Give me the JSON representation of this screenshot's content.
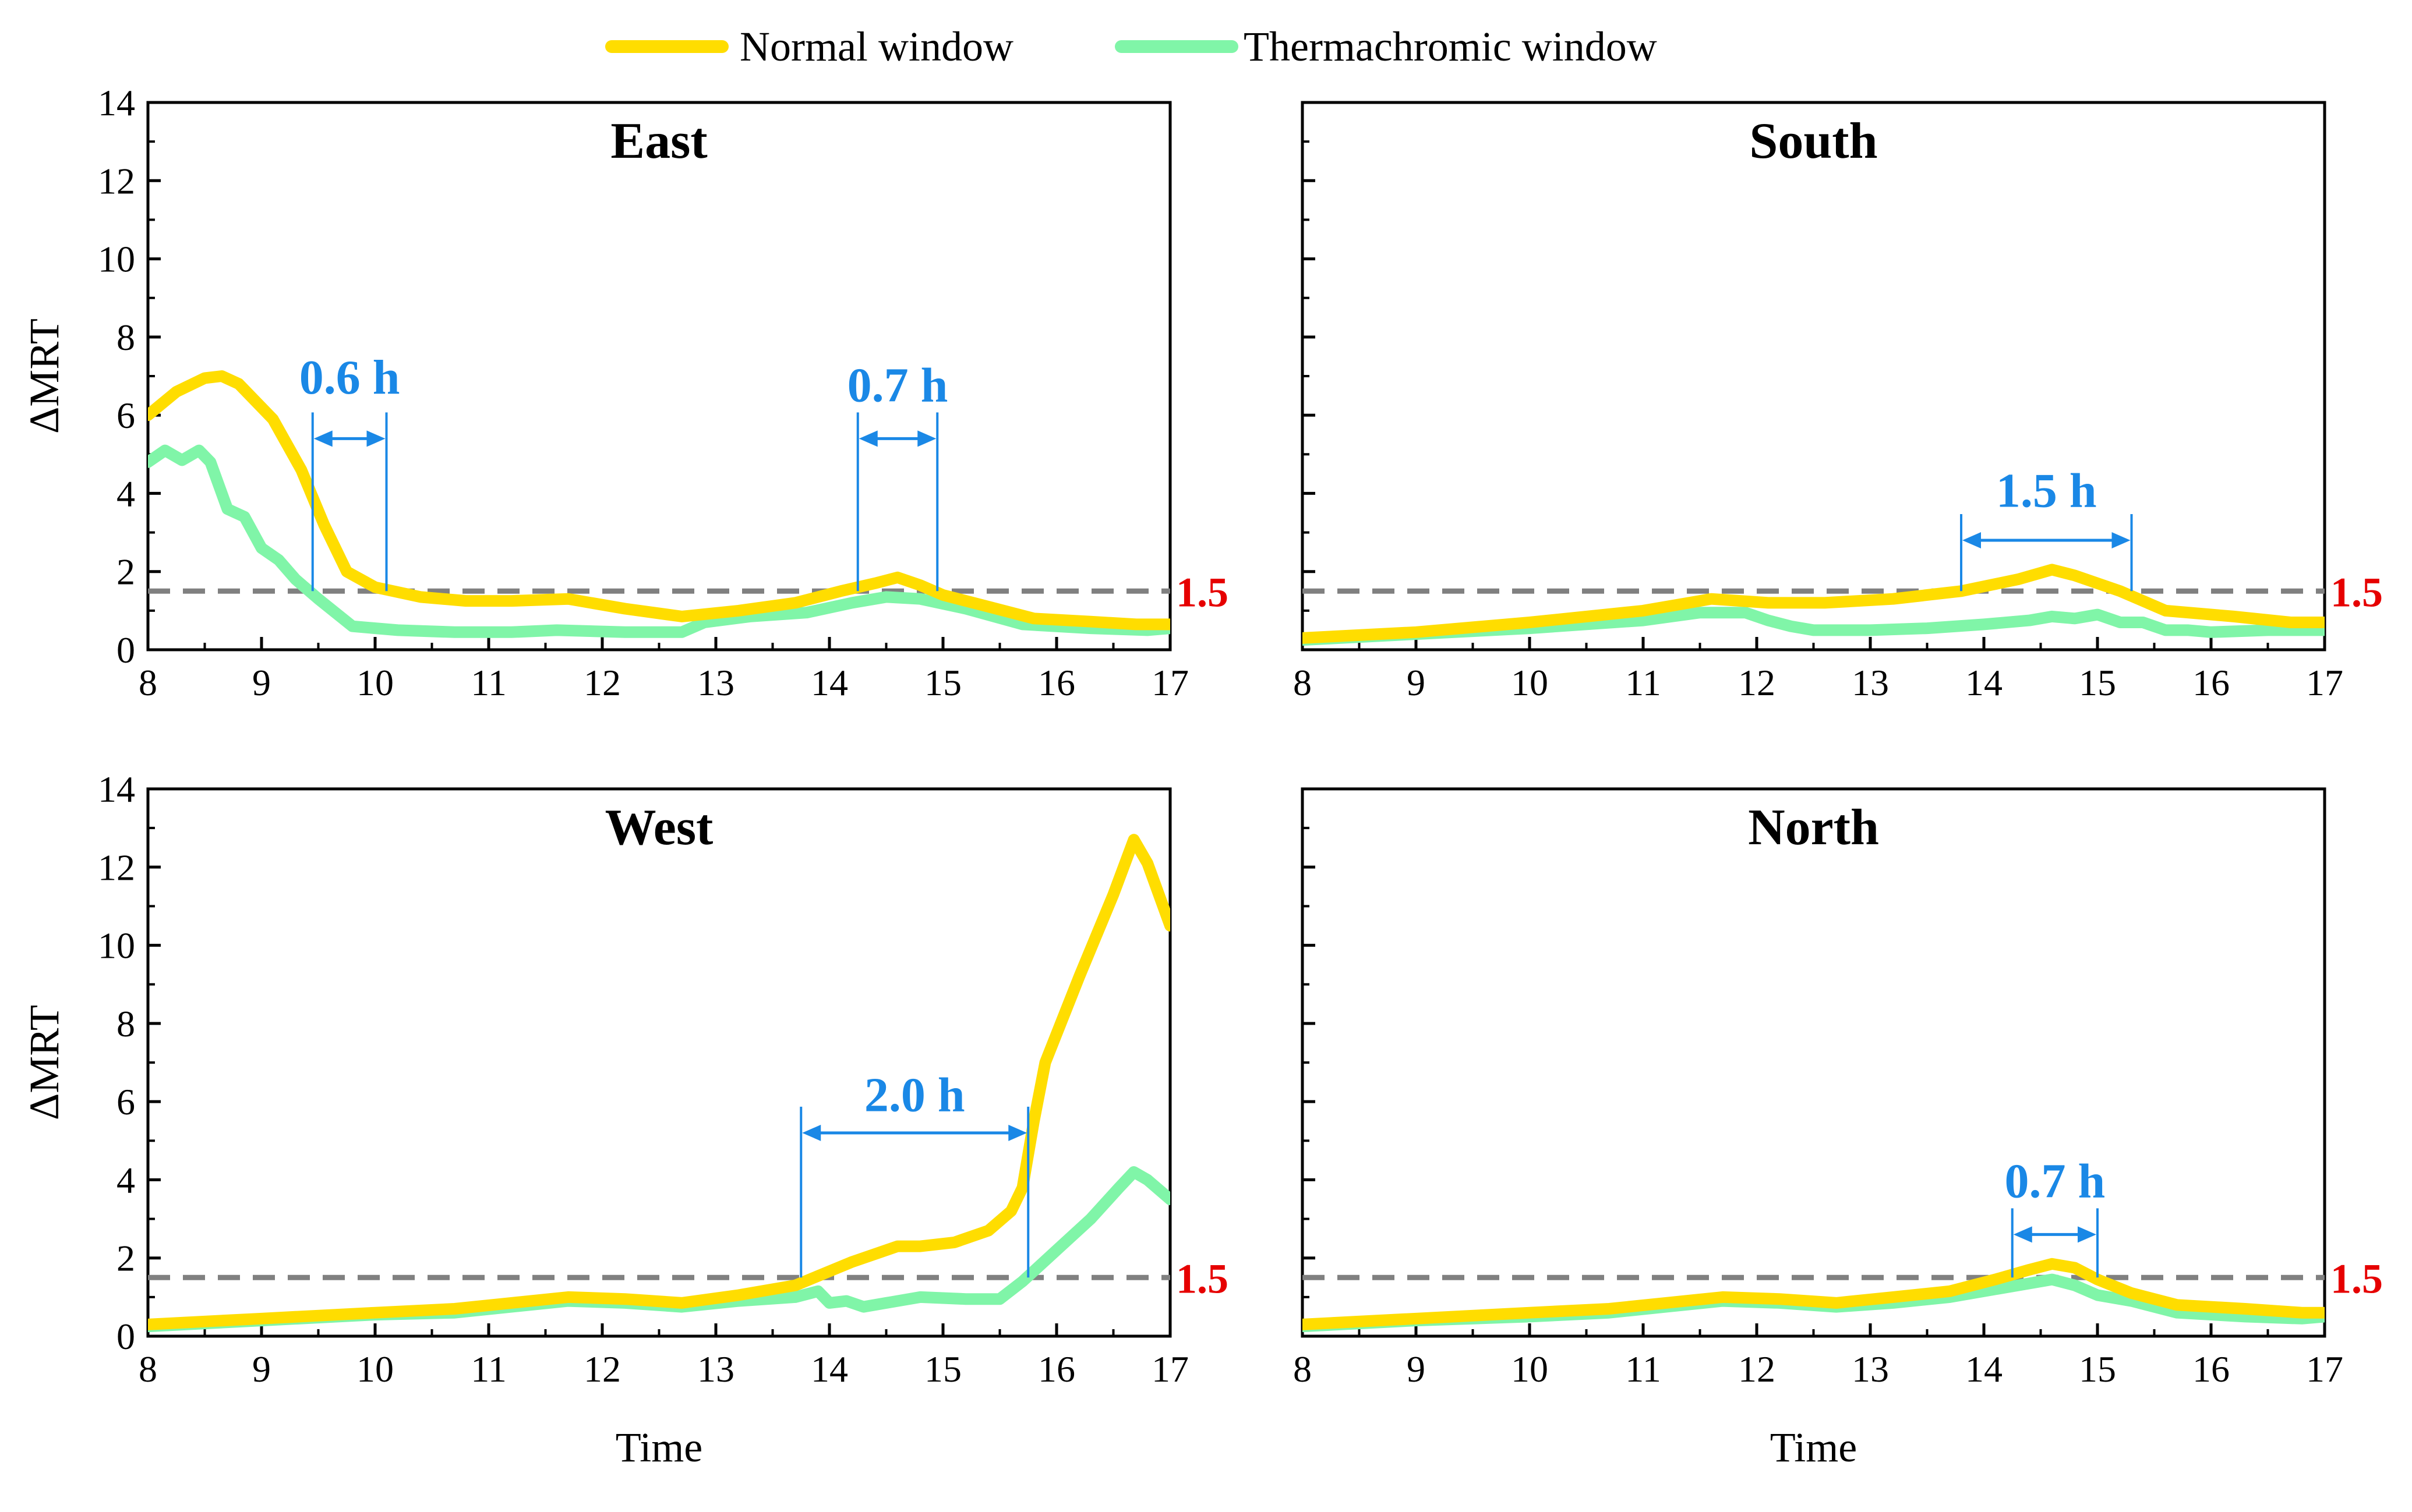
{
  "legend": [
    {
      "name": "Normal window",
      "color": "#FFDD00"
    },
    {
      "name": "Thermachromic window",
      "color": "#80F5A8"
    }
  ],
  "colors": {
    "annotation": "#1A88E6",
    "threshold_line": "#808080",
    "threshold_label": "#E60000",
    "axis": "#000000"
  },
  "x_ticks": [
    "8",
    "9",
    "10",
    "11",
    "12",
    "13",
    "14",
    "15",
    "16",
    "17"
  ],
  "y_ticks": [
    "0",
    "2",
    "4",
    "6",
    "8",
    "10",
    "12",
    "14"
  ],
  "chart_data": [
    {
      "type": "line",
      "title": "East",
      "xlabel": "",
      "ylabel": "ΔMRT",
      "xlim": [
        8,
        17
      ],
      "ylim": [
        0,
        14
      ],
      "threshold": {
        "value": 1.5,
        "label": "1.5"
      },
      "series": [
        {
          "name": "Normal window",
          "x": [
            8,
            8.25,
            8.5,
            8.65,
            8.8,
            9.1,
            9.35,
            9.55,
            9.75,
            10.0,
            10.4,
            10.8,
            11.2,
            11.7,
            12.2,
            12.7,
            13.2,
            13.7,
            14.1,
            14.4,
            14.6,
            14.8,
            15.0,
            15.4,
            15.8,
            16.3,
            16.7,
            17
          ],
          "y": [
            6.0,
            6.6,
            6.95,
            7.0,
            6.8,
            5.9,
            4.6,
            3.2,
            2.0,
            1.6,
            1.35,
            1.25,
            1.25,
            1.3,
            1.05,
            0.85,
            1.0,
            1.2,
            1.5,
            1.7,
            1.85,
            1.65,
            1.4,
            1.1,
            0.8,
            0.72,
            0.65,
            0.65
          ]
        },
        {
          "name": "Thermachromic window",
          "x": [
            8,
            8.15,
            8.3,
            8.45,
            8.55,
            8.7,
            8.85,
            9.0,
            9.15,
            9.3,
            9.5,
            9.8,
            10.2,
            10.7,
            11.2,
            11.6,
            12.2,
            12.7,
            12.9,
            13.3,
            13.8,
            14.2,
            14.5,
            14.8,
            15.2,
            15.7,
            16.3,
            16.8,
            17
          ],
          "y": [
            4.8,
            5.1,
            4.85,
            5.1,
            4.8,
            3.6,
            3.4,
            2.6,
            2.3,
            1.8,
            1.3,
            0.6,
            0.5,
            0.45,
            0.45,
            0.5,
            0.45,
            0.45,
            0.7,
            0.85,
            0.95,
            1.2,
            1.35,
            1.3,
            1.05,
            0.65,
            0.55,
            0.5,
            0.55
          ]
        }
      ],
      "annotations": [
        {
          "label": "0.6 h",
          "x_start": 9.45,
          "x_end": 10.1,
          "arrow_y": 5.4,
          "label_y": 7.0
        },
        {
          "label": "0.7 h",
          "x_start": 14.25,
          "x_end": 14.95,
          "arrow_y": 5.4,
          "label_y": 6.8
        }
      ]
    },
    {
      "type": "line",
      "title": "South",
      "xlabel": "",
      "ylabel": "",
      "xlim": [
        8,
        17
      ],
      "ylim": [
        0,
        14
      ],
      "threshold": {
        "value": 1.5,
        "label": "1.5"
      },
      "series": [
        {
          "name": "Normal window",
          "x": [
            8,
            9,
            10,
            11,
            11.6,
            12.1,
            12.6,
            13.2,
            13.8,
            14.3,
            14.6,
            14.8,
            15.2,
            15.6,
            16.2,
            16.7,
            17
          ],
          "y": [
            0.3,
            0.45,
            0.7,
            1.0,
            1.3,
            1.2,
            1.2,
            1.3,
            1.5,
            1.8,
            2.05,
            1.9,
            1.5,
            1.0,
            0.85,
            0.7,
            0.7
          ]
        },
        {
          "name": "Thermachromic window",
          "x": [
            8,
            9,
            10,
            11,
            11.5,
            11.9,
            12.1,
            12.3,
            12.5,
            13.0,
            13.5,
            14.0,
            14.4,
            14.6,
            14.8,
            15.0,
            15.2,
            15.4,
            15.6,
            15.8,
            16.0,
            16.5,
            17
          ],
          "y": [
            0.25,
            0.4,
            0.55,
            0.75,
            0.95,
            0.95,
            0.75,
            0.6,
            0.5,
            0.5,
            0.55,
            0.65,
            0.75,
            0.85,
            0.8,
            0.9,
            0.7,
            0.7,
            0.5,
            0.5,
            0.45,
            0.5,
            0.5
          ]
        }
      ],
      "annotations": [
        {
          "label": "1.5 h",
          "x_start": 13.8,
          "x_end": 15.3,
          "arrow_y": 2.8,
          "label_y": 4.1
        }
      ]
    },
    {
      "type": "line",
      "title": "West",
      "xlabel": "Time",
      "ylabel": "ΔMRT",
      "xlim": [
        8,
        17
      ],
      "ylim": [
        0,
        14
      ],
      "threshold": {
        "value": 1.5,
        "label": "1.5"
      },
      "series": [
        {
          "name": "Normal window",
          "x": [
            8,
            9,
            10,
            10.7,
            11.2,
            11.7,
            12.2,
            12.7,
            13.2,
            13.7,
            14.2,
            14.6,
            14.8,
            15.1,
            15.4,
            15.6,
            15.7,
            15.8,
            15.9,
            16.2,
            16.5,
            16.68,
            16.8,
            17
          ],
          "y": [
            0.3,
            0.45,
            0.6,
            0.7,
            0.85,
            1.0,
            0.95,
            0.85,
            1.05,
            1.3,
            1.9,
            2.3,
            2.3,
            2.4,
            2.7,
            3.2,
            3.8,
            5.5,
            7.0,
            9.2,
            11.3,
            12.7,
            12.1,
            10.5
          ]
        },
        {
          "name": "Thermachromic window",
          "x": [
            8,
            9,
            10,
            10.7,
            11.2,
            11.7,
            12.2,
            12.7,
            13.2,
            13.7,
            13.9,
            14.0,
            14.15,
            14.3,
            14.5,
            14.8,
            15.2,
            15.5,
            15.7,
            16.0,
            16.3,
            16.55,
            16.68,
            16.8,
            17
          ],
          "y": [
            0.25,
            0.4,
            0.55,
            0.6,
            0.75,
            0.9,
            0.85,
            0.75,
            0.9,
            1.0,
            1.15,
            0.85,
            0.9,
            0.75,
            0.85,
            1.0,
            0.95,
            0.95,
            1.4,
            2.2,
            3.0,
            3.8,
            4.2,
            4.0,
            3.5
          ]
        }
      ],
      "annotations": [
        {
          "label": "2.0 h",
          "x_start": 13.75,
          "x_end": 15.75,
          "arrow_y": 5.2,
          "label_y": 6.2
        }
      ]
    },
    {
      "type": "line",
      "title": "North",
      "xlabel": "Time",
      "ylabel": "",
      "xlim": [
        8,
        17
      ],
      "ylim": [
        0,
        14
      ],
      "threshold": {
        "value": 1.5,
        "label": "1.5"
      },
      "series": [
        {
          "name": "Normal window",
          "x": [
            8,
            9,
            10,
            10.7,
            11.2,
            11.7,
            12.2,
            12.7,
            13.2,
            13.7,
            14.1,
            14.4,
            14.6,
            14.8,
            15.0,
            15.3,
            15.7,
            16.3,
            16.8,
            17
          ],
          "y": [
            0.3,
            0.45,
            0.6,
            0.7,
            0.85,
            1.0,
            0.95,
            0.85,
            1.0,
            1.15,
            1.45,
            1.7,
            1.85,
            1.75,
            1.45,
            1.1,
            0.8,
            0.7,
            0.6,
            0.6
          ]
        },
        {
          "name": "Thermachromic window",
          "x": [
            8,
            9,
            10,
            10.7,
            11.2,
            11.7,
            12.2,
            12.7,
            13.2,
            13.7,
            14.1,
            14.4,
            14.6,
            14.8,
            15.0,
            15.3,
            15.7,
            16.3,
            16.8,
            17
          ],
          "y": [
            0.25,
            0.4,
            0.5,
            0.6,
            0.75,
            0.9,
            0.85,
            0.75,
            0.85,
            1.0,
            1.2,
            1.35,
            1.45,
            1.3,
            1.05,
            0.9,
            0.6,
            0.5,
            0.45,
            0.5
          ]
        }
      ],
      "annotations": [
        {
          "label": "0.7 h",
          "x_start": 14.25,
          "x_end": 15.0,
          "arrow_y": 2.6,
          "label_y": 4.0
        }
      ]
    }
  ]
}
